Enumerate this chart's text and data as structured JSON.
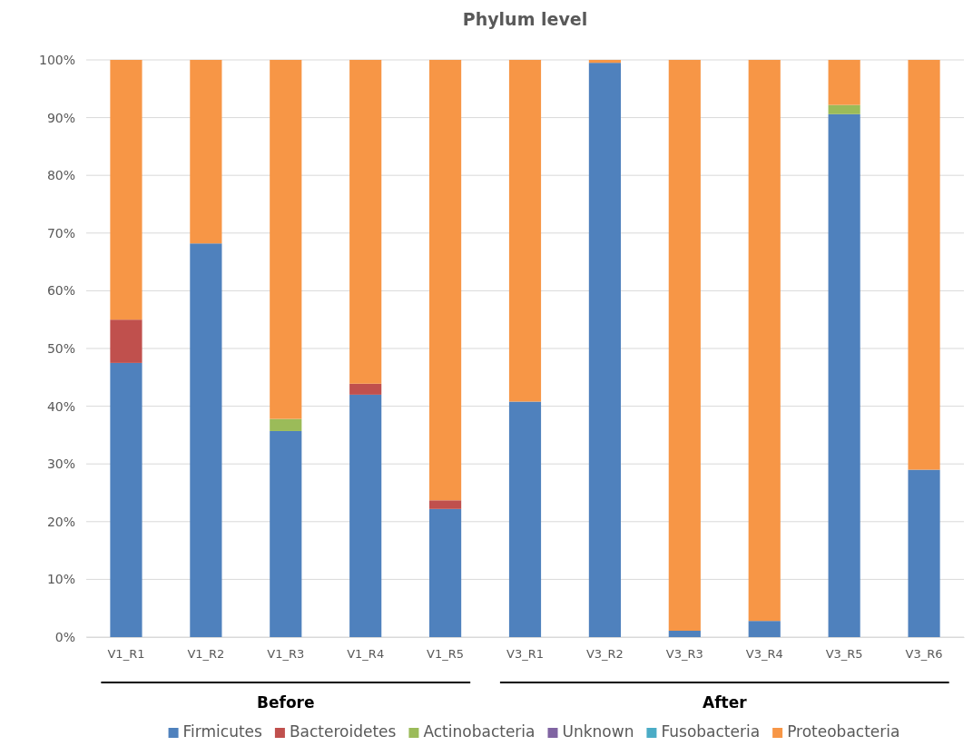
{
  "chart_data": {
    "type": "bar",
    "stacked": true,
    "title": "Phylum level",
    "categories": [
      "V1_R1",
      "V1_R2",
      "V1_R3",
      "V1_R4",
      "V1_R5",
      "V3_R1",
      "V3_R2",
      "V3_R3",
      "V3_R4",
      "V3_R5",
      "V3_R6"
    ],
    "series": [
      {
        "name": "Firmicutes",
        "color": "#4f81bd",
        "values": [
          47.5,
          68.2,
          35.7,
          42,
          22.2,
          40.8,
          99.5,
          1.1,
          2.8,
          90.6,
          29
        ]
      },
      {
        "name": "Bacteroidetes",
        "color": "#c0504d",
        "values": [
          7.5,
          0,
          0,
          1.9,
          1.5,
          0,
          0,
          0,
          0,
          0,
          0
        ]
      },
      {
        "name": "Actinobacteria",
        "color": "#9bbb59",
        "values": [
          0,
          0,
          2.1,
          0,
          0,
          0,
          0,
          0,
          0,
          1.6,
          0
        ]
      },
      {
        "name": "Unknown",
        "color": "#8064a2",
        "values": [
          0,
          0,
          0,
          0,
          0,
          0,
          0,
          0,
          0,
          0,
          0
        ]
      },
      {
        "name": "Fusobacteria",
        "color": "#4bacc6",
        "values": [
          0,
          0,
          0,
          0,
          0,
          0,
          0,
          0,
          0,
          0,
          0
        ]
      },
      {
        "name": "Proteobacteria",
        "color": "#f79646",
        "values": [
          45,
          31.8,
          62.2,
          56.1,
          76.3,
          59.2,
          0.5,
          98.9,
          97.2,
          7.8,
          71
        ]
      }
    ],
    "ylim": [
      0,
      100
    ],
    "yticks": [
      {
        "value": 0,
        "label": "0%"
      },
      {
        "value": 10,
        "label": "10%"
      },
      {
        "value": 20,
        "label": "20%"
      },
      {
        "value": 30,
        "label": "30%"
      },
      {
        "value": 40,
        "label": "40%"
      },
      {
        "value": 50,
        "label": "50%"
      },
      {
        "value": 60,
        "label": "60%"
      },
      {
        "value": 70,
        "label": "70%"
      },
      {
        "value": 80,
        "label": "80%"
      },
      {
        "value": 90,
        "label": "90%"
      },
      {
        "value": 100,
        "label": "100%"
      }
    ],
    "grid": "y",
    "legend": "bottom",
    "annotations": [
      "Before",
      "After"
    ]
  }
}
